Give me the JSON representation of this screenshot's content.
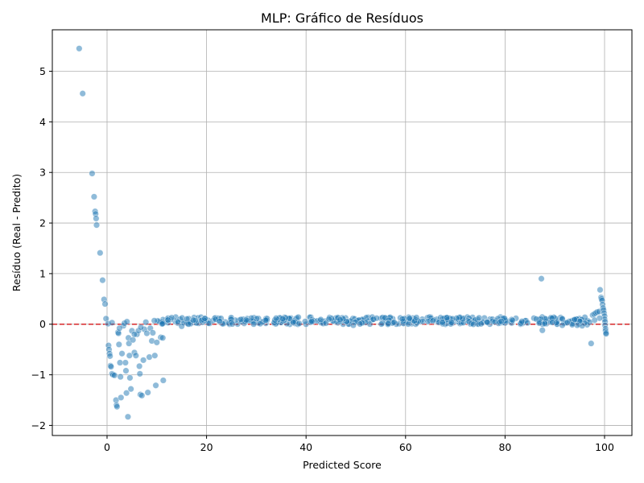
{
  "chart_data": {
    "type": "scatter",
    "title": "MLP: Gráfico de Resíduos",
    "xlabel": "Predicted Score",
    "ylabel": "Resíduo (Real - Predito)",
    "xlim": [
      -11,
      105.5
    ],
    "ylim": [
      -2.2,
      5.82
    ],
    "xticks": [
      0,
      20,
      40,
      60,
      80,
      100
    ],
    "yticks": [
      -2,
      -1,
      0,
      1,
      2,
      3,
      4,
      5
    ],
    "grid": true,
    "reference_line": {
      "y": 0,
      "color": "#d62728",
      "style": "dashed"
    },
    "point_color": "#1f77b4",
    "point_alpha": 0.5,
    "band": {
      "x_start": 10,
      "x_end": 97,
      "y_center": 0.07,
      "y_spread": 0.09,
      "count": 420
    },
    "points": [
      [
        -5.6,
        5.45
      ],
      [
        -4.9,
        4.56
      ],
      [
        -3.0,
        2.98
      ],
      [
        -2.6,
        2.52
      ],
      [
        -2.4,
        2.23
      ],
      [
        -2.3,
        2.18
      ],
      [
        -2.2,
        2.09
      ],
      [
        -2.1,
        1.96
      ],
      [
        -1.4,
        1.41
      ],
      [
        -0.9,
        0.87
      ],
      [
        -0.6,
        0.49
      ],
      [
        -0.4,
        0.4
      ],
      [
        -0.2,
        0.11
      ],
      [
        0.3,
        -0.42
      ],
      [
        0.4,
        -0.5
      ],
      [
        0.5,
        -0.58
      ],
      [
        0.6,
        -0.63
      ],
      [
        0.7,
        -0.82
      ],
      [
        0.8,
        -0.84
      ],
      [
        1.0,
        -0.98
      ],
      [
        1.2,
        -1.0
      ],
      [
        1.5,
        -1.01
      ],
      [
        1.8,
        -1.5
      ],
      [
        1.9,
        -1.6
      ],
      [
        2.0,
        -1.63
      ],
      [
        2.2,
        -0.16
      ],
      [
        2.3,
        -0.18
      ],
      [
        2.4,
        -0.4
      ],
      [
        2.6,
        -0.76
      ],
      [
        2.7,
        -1.04
      ],
      [
        2.8,
        -1.45
      ],
      [
        3.0,
        -0.58
      ],
      [
        3.3,
        -0.03
      ],
      [
        3.5,
        0.02
      ],
      [
        3.7,
        -0.76
      ],
      [
        3.8,
        -0.92
      ],
      [
        3.9,
        -1.36
      ],
      [
        4.2,
        -1.83
      ],
      [
        4.3,
        -0.27
      ],
      [
        4.4,
        -0.38
      ],
      [
        4.5,
        -0.62
      ],
      [
        4.6,
        -1.06
      ],
      [
        4.8,
        -1.28
      ],
      [
        5.0,
        -0.13
      ],
      [
        5.2,
        -0.31
      ],
      [
        5.5,
        -0.56
      ],
      [
        5.8,
        -0.62
      ],
      [
        6.0,
        -0.2
      ],
      [
        6.3,
        -0.13
      ],
      [
        6.5,
        -0.83
      ],
      [
        6.6,
        -0.98
      ],
      [
        6.7,
        -1.39
      ],
      [
        7.0,
        -1.41
      ],
      [
        7.3,
        -0.71
      ],
      [
        7.5,
        -0.1
      ],
      [
        8.0,
        -0.18
      ],
      [
        8.2,
        -1.35
      ],
      [
        8.5,
        -0.65
      ],
      [
        8.7,
        -0.08
      ],
      [
        9.0,
        -0.33
      ],
      [
        9.2,
        -0.17
      ],
      [
        9.6,
        -0.62
      ],
      [
        9.8,
        -1.21
      ],
      [
        10.0,
        -0.36
      ],
      [
        10.8,
        -0.26
      ],
      [
        11.2,
        -0.27
      ],
      [
        11.3,
        -1.11
      ],
      [
        0.2,
        0.01
      ],
      [
        1.0,
        0.03
      ],
      [
        2.5,
        -0.08
      ],
      [
        4.0,
        0.05
      ],
      [
        5.5,
        -0.2
      ],
      [
        6.8,
        -0.06
      ],
      [
        7.8,
        0.04
      ],
      [
        9.5,
        0.07
      ],
      [
        15.0,
        -0.04
      ],
      [
        49.5,
        -0.02
      ],
      [
        87.3,
        0.9
      ],
      [
        87.5,
        -0.12
      ],
      [
        97.3,
        -0.38
      ],
      [
        97.6,
        0.18
      ],
      [
        97.9,
        0.2
      ],
      [
        98.2,
        0.22
      ],
      [
        98.5,
        0.24
      ],
      [
        98.9,
        0.25
      ],
      [
        99.1,
        0.68
      ],
      [
        99.3,
        0.53
      ],
      [
        99.4,
        0.5
      ],
      [
        99.5,
        0.47
      ],
      [
        99.6,
        0.39
      ],
      [
        99.7,
        0.32
      ],
      [
        99.8,
        0.28
      ],
      [
        99.9,
        0.22
      ],
      [
        100.0,
        0.16
      ],
      [
        100.0,
        0.1
      ],
      [
        100.1,
        0.05
      ],
      [
        100.1,
        -0.02
      ],
      [
        100.2,
        -0.09
      ],
      [
        100.2,
        -0.13
      ],
      [
        100.3,
        -0.17
      ],
      [
        100.3,
        -0.19
      ],
      [
        99.0,
        0.12
      ],
      [
        98.0,
        0.08
      ],
      [
        97.0,
        0.04
      ],
      [
        96.5,
        -0.01
      ],
      [
        96.0,
        0.02
      ],
      [
        95.5,
        -0.03
      ],
      [
        95.0,
        0.06
      ],
      [
        94.5,
        -0.02
      ],
      [
        94.0,
        0.09
      ],
      [
        93.5,
        -0.01
      ],
      [
        92.5,
        0.03
      ],
      [
        91.5,
        -0.02
      ]
    ]
  }
}
